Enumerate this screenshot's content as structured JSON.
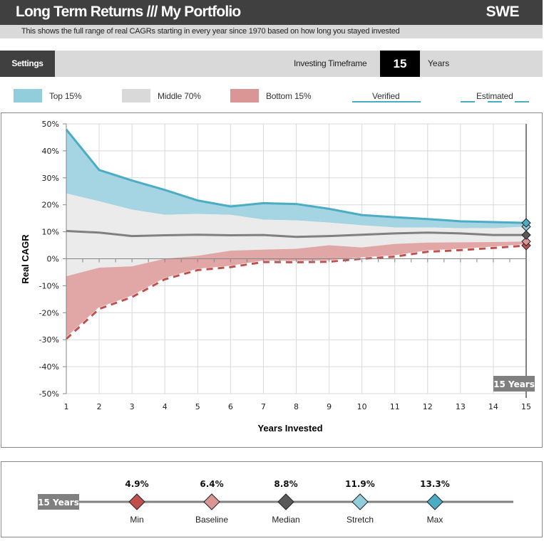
{
  "header": {
    "title": "Long Term Returns /// My Portfolio",
    "region": "SWE",
    "description": "This shows the full range of real CAGRs starting in every year since 1970 based on how long you stayed invested"
  },
  "settings_bar": {
    "settings_label": "Settings",
    "timeframe_label": "Investing Timeframe",
    "timeframe_value": "15",
    "timeframe_unit": "Years"
  },
  "legend": {
    "items": [
      {
        "label": "Top 15%",
        "color": "#92cddc"
      },
      {
        "label": "Middle 70%",
        "color": "#d9d9d9"
      },
      {
        "label": "Bottom 15%",
        "color": "#da9694"
      }
    ],
    "verified_label": "Verified",
    "estimated_label": "Estimated",
    "line_color": "#4bacc6"
  },
  "chart_data": {
    "type": "area",
    "title": "",
    "xlabel": "Years Invested",
    "ylabel": "Real CAGR",
    "x": [
      1,
      2,
      3,
      4,
      5,
      6,
      7,
      8,
      9,
      10,
      11,
      12,
      13,
      14,
      15
    ],
    "ylim": [
      -50,
      50
    ],
    "yticks": [
      "50%",
      "40%",
      "30%",
      "20%",
      "10%",
      "0%",
      "-10%",
      "-20%",
      "-30%",
      "-40%",
      "-50%"
    ],
    "ytick_values": [
      50,
      40,
      30,
      20,
      10,
      0,
      -10,
      -20,
      -30,
      -40,
      -50
    ],
    "xticks": [
      "1",
      "2",
      "3",
      "4",
      "5",
      "6",
      "7",
      "8",
      "9",
      "10",
      "11",
      "12",
      "13",
      "14",
      "15"
    ],
    "grid": true,
    "series": [
      {
        "name": "Max",
        "color": "#4bacc6",
        "values": [
          47.9,
          32.9,
          29.0,
          25.5,
          21.6,
          19.4,
          20.6,
          20.3,
          18.5,
          16.2,
          15.4,
          14.7,
          13.9,
          13.6,
          13.3
        ]
      },
      {
        "name": "Stretch (Top 15% boundary)",
        "color": "#92cddc",
        "values": [
          24.2,
          21.3,
          18.2,
          16.3,
          16.6,
          16.3,
          14.5,
          14.2,
          13.4,
          12.4,
          11.6,
          11.6,
          11.3,
          11.3,
          11.9
        ]
      },
      {
        "name": "Median",
        "color": "#808080",
        "values": [
          10.3,
          9.7,
          8.4,
          8.7,
          8.9,
          8.7,
          8.8,
          8.1,
          8.4,
          8.9,
          9.4,
          9.7,
          9.4,
          8.8,
          8.8
        ]
      },
      {
        "name": "Baseline (Bottom 15% boundary)",
        "color": "#da9694",
        "values": [
          -6.5,
          -3.3,
          -2.8,
          0.0,
          1.1,
          3.0,
          3.4,
          3.7,
          5.0,
          4.2,
          5.5,
          6.0,
          6.1,
          6.2,
          6.4
        ]
      },
      {
        "name": "Min",
        "color": "#c0504d",
        "values": [
          -29.7,
          -18.6,
          -14.2,
          -7.6,
          -4.2,
          -3.1,
          -1.2,
          -1.3,
          -1.1,
          0.0,
          0.8,
          2.6,
          3.2,
          4.0,
          4.9
        ]
      }
    ],
    "selected_year": 15,
    "selected_label": "15 Years"
  },
  "summary": {
    "label": "15 Years",
    "markers": [
      {
        "name": "Min",
        "value": "4.9%",
        "color": "#c0504d"
      },
      {
        "name": "Baseline",
        "value": "6.4%",
        "color": "#da9694"
      },
      {
        "name": "Median",
        "value": "8.8%",
        "color": "#595959"
      },
      {
        "name": "Stretch",
        "value": "11.9%",
        "color": "#92cddc"
      },
      {
        "name": "Max",
        "value": "13.3%",
        "color": "#4bacc6"
      }
    ]
  }
}
